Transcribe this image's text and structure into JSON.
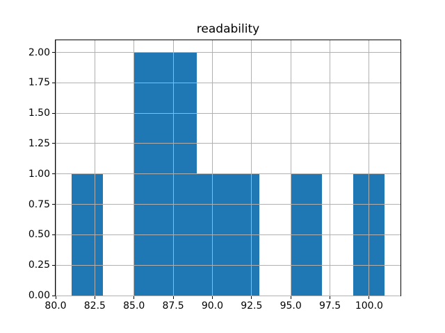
{
  "chart_data": {
    "type": "bar",
    "subtype": "histogram",
    "title": "readability",
    "xlabel": "",
    "ylabel": "",
    "bin_edges": [
      81,
      83,
      85,
      87,
      89,
      91,
      93,
      95,
      97,
      99,
      101
    ],
    "counts": [
      1,
      0,
      2,
      2,
      1,
      1,
      0,
      1,
      0,
      1
    ],
    "xlim": [
      80,
      102
    ],
    "ylim": [
      0,
      2.1
    ],
    "xticks": [
      80,
      82.5,
      85,
      87.5,
      90,
      92.5,
      95,
      97.5,
      100
    ],
    "xtick_labels": [
      "80.0",
      "82.5",
      "85.0",
      "87.5",
      "90.0",
      "92.5",
      "95.0",
      "97.5",
      "100.0"
    ],
    "yticks": [
      0,
      0.25,
      0.5,
      0.75,
      1,
      1.25,
      1.5,
      1.75,
      2
    ],
    "ytick_labels": [
      "0.00",
      "0.25",
      "0.50",
      "0.75",
      "1.00",
      "1.25",
      "1.50",
      "1.75",
      "2.00"
    ],
    "grid": true,
    "grid_over_bars": true,
    "legend": null,
    "bar_color": "#1f77b4",
    "grid_color": "#b0b0b0",
    "spine_color": "#000000",
    "tick_color": "#000000",
    "text_color": "#000000",
    "background_color": "#ffffff"
  }
}
